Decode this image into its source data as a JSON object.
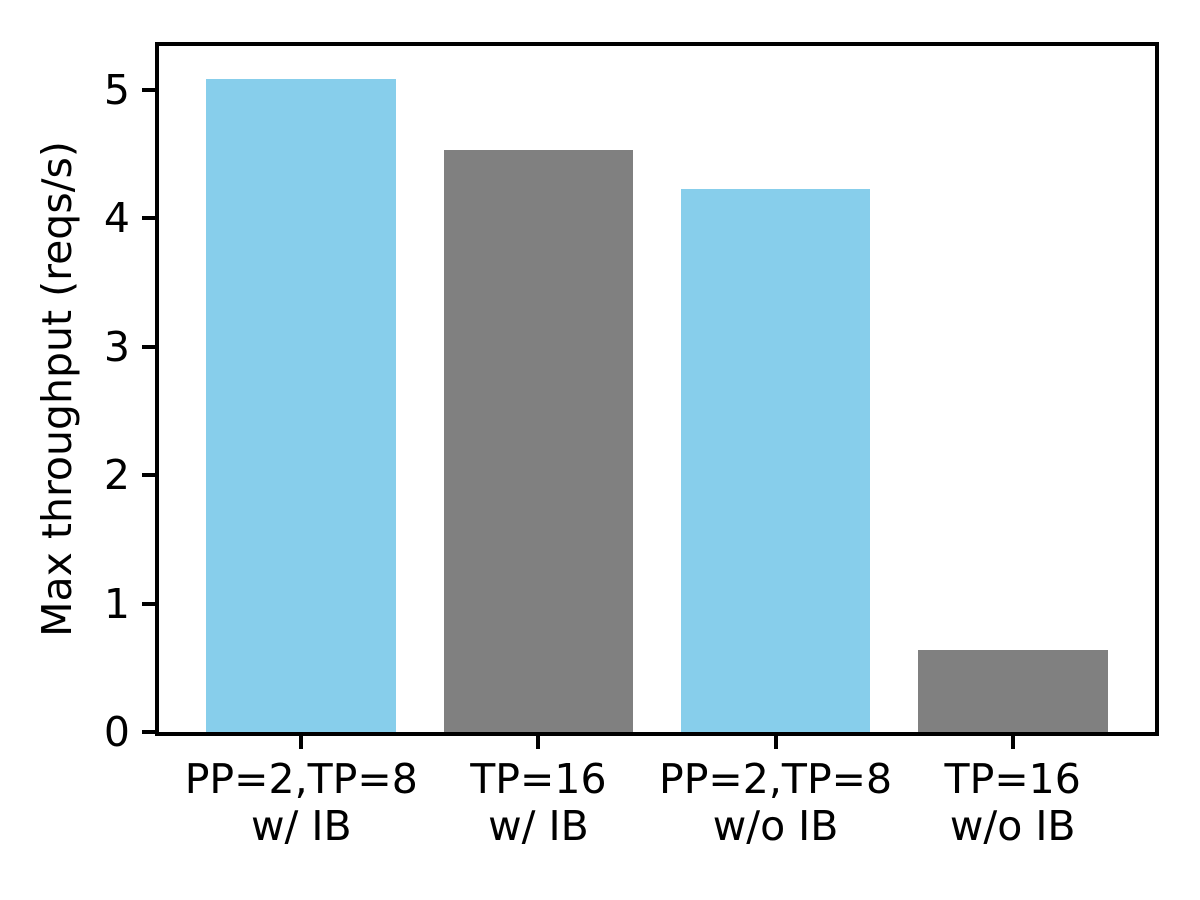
{
  "figure": {
    "background": "#ffffff",
    "spine_color": "#000000",
    "text_color": "#000000"
  },
  "chart_data": {
    "type": "bar",
    "title": "",
    "xlabel": "",
    "ylabel": "Max throughput (reqs/s)",
    "categories": [
      "PP=2,TP=8\nw/ IB",
      "TP=16\nw/ IB",
      "PP=2,TP=8\nw/o IB",
      "TP=16\nw/o IB"
    ],
    "values": [
      5.08,
      4.53,
      4.23,
      0.64
    ],
    "bar_colors": [
      "#87ceeb",
      "#808080",
      "#87ceeb",
      "#808080"
    ],
    "color_legend": {
      "skyblue": "#87ceeb",
      "gray": "#808080"
    },
    "yticks": [
      0,
      1,
      2,
      3,
      4,
      5
    ],
    "ytick_labels": [
      "0",
      "1",
      "2",
      "3",
      "4",
      "5"
    ],
    "ylim": [
      0,
      5.34
    ],
    "xlim": [
      -0.6,
      3.6
    ],
    "bar_width": 0.8,
    "grid": false,
    "legend_position": "none"
  }
}
